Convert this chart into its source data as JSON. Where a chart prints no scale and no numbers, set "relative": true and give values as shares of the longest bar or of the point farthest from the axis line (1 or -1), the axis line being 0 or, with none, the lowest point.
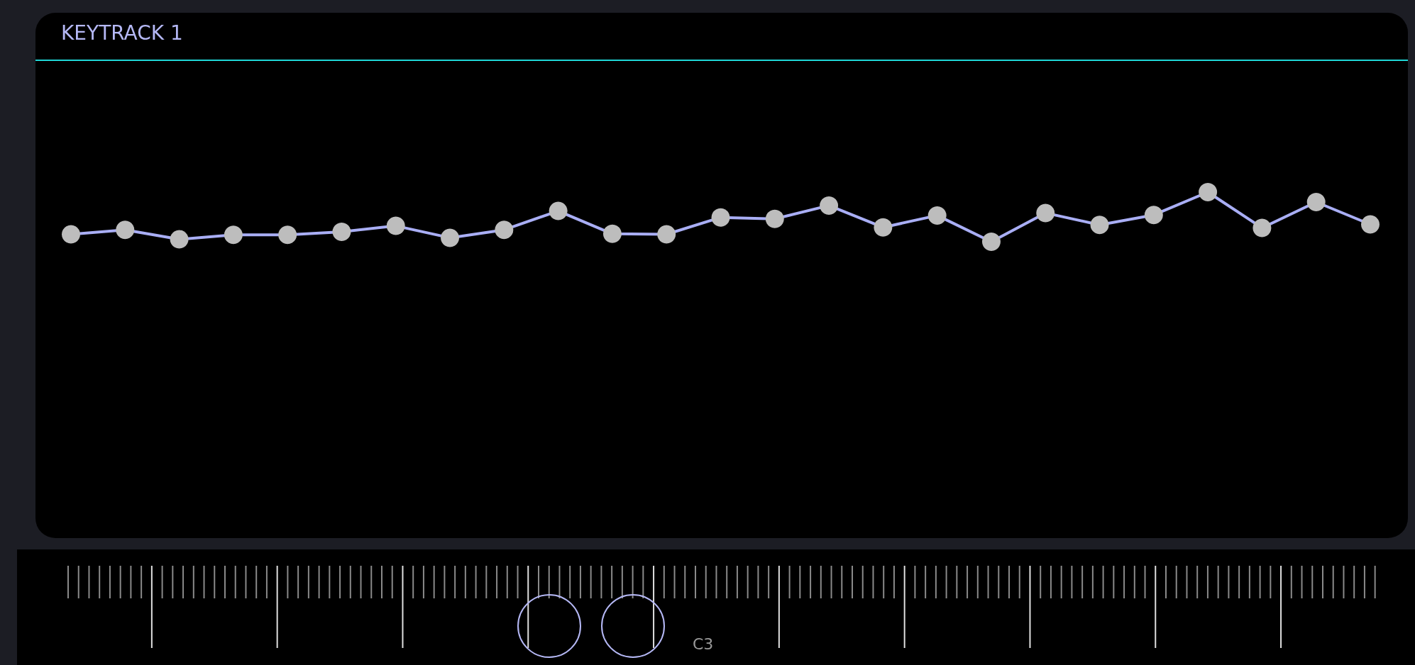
{
  "chart_data": {
    "type": "line",
    "title": "KEYTRACK 1",
    "relative": true,
    "categories": [
      null,
      null,
      null,
      null,
      null,
      null,
      null,
      null,
      null,
      null,
      null,
      null,
      null,
      null,
      null,
      null,
      null,
      null,
      null,
      null,
      null,
      null,
      null,
      null,
      null
    ],
    "annotations": [
      "C3"
    ],
    "series": [
      {
        "color": "#a9aef5",
        "values": [
          0.15,
          0.24,
          0.05,
          0.14,
          0.14,
          0.2,
          0.32,
          0.08,
          0.24,
          0.62,
          0.16,
          0.15,
          0.49,
          0.46,
          0.73,
          0.29,
          0.53,
          0,
          0.58,
          0.34,
          0.54,
          1,
          0.28,
          0.8,
          0.35
        ]
      }
    ],
    "marker": "circle",
    "line_style": "solid"
  }
}
